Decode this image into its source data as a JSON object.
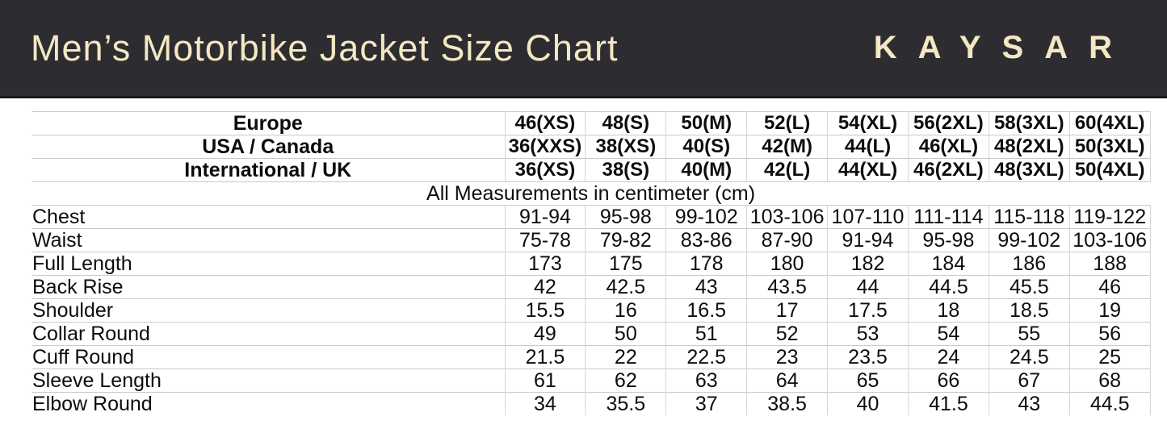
{
  "header": {
    "title": "Men’s Motorbike Jacket Size Chart",
    "brand": "KAYSAR"
  },
  "theme": {
    "header_bg": "#2d2d31",
    "header_edge": "#1a1a1d",
    "cream": "#f4e7c4",
    "grid_line": "#c9c9c9",
    "grid_line_v": "#d6d6d6",
    "ink": "#0d0d0d"
  },
  "chart_data": {
    "type": "table",
    "title": "Men’s Motorbike Jacket Size Chart",
    "note": "All Measurements in centimeter (cm)",
    "size_rows": [
      {
        "label": "Europe",
        "values": [
          "46(XS)",
          "48(S)",
          "50(M)",
          "52(L)",
          "54(XL)",
          "56(2XL)",
          "58(3XL)",
          "60(4XL)"
        ]
      },
      {
        "label": "USA / Canada",
        "values": [
          "36(XXS)",
          "38(XS)",
          "40(S)",
          "42(M)",
          "44(L)",
          "46(XL)",
          "48(2XL)",
          "50(3XL)"
        ]
      },
      {
        "label": "International / UK",
        "values": [
          "36(XS)",
          "38(S)",
          "40(M)",
          "42(L)",
          "44(XL)",
          "46(2XL)",
          "48(3XL)",
          "50(4XL)"
        ]
      }
    ],
    "measurement_rows": [
      {
        "label": "Chest",
        "values": [
          "91-94",
          "95-98",
          "99-102",
          "103-106",
          "107-110",
          "111-114",
          "115-118",
          "119-122"
        ]
      },
      {
        "label": "Waist",
        "values": [
          "75-78",
          "79-82",
          "83-86",
          "87-90",
          "91-94",
          "95-98",
          "99-102",
          "103-106"
        ]
      },
      {
        "label": "Full Length",
        "values": [
          "173",
          "175",
          "178",
          "180",
          "182",
          "184",
          "186",
          "188"
        ]
      },
      {
        "label": "Back Rise",
        "values": [
          "42",
          "42.5",
          "43",
          "43.5",
          "44",
          "44.5",
          "45.5",
          "46"
        ]
      },
      {
        "label": "Shoulder",
        "values": [
          "15.5",
          "16",
          "16.5",
          "17",
          "17.5",
          "18",
          "18.5",
          "19"
        ]
      },
      {
        "label": "Collar Round",
        "values": [
          "49",
          "50",
          "51",
          "52",
          "53",
          "54",
          "55",
          "56"
        ]
      },
      {
        "label": "Cuff Round",
        "values": [
          "21.5",
          "22",
          "22.5",
          "23",
          "23.5",
          "24",
          "24.5",
          "25"
        ]
      },
      {
        "label": "Sleeve Length",
        "values": [
          "61",
          "62",
          "63",
          "64",
          "65",
          "66",
          "67",
          "68"
        ]
      },
      {
        "label": "Elbow Round",
        "values": [
          "34",
          "35.5",
          "37",
          "38.5",
          "40",
          "41.5",
          "43",
          "44.5"
        ]
      }
    ]
  }
}
